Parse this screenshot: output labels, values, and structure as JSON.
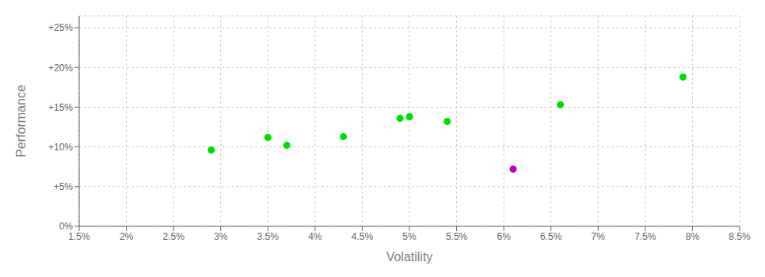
{
  "chart_data": {
    "type": "scatter",
    "xlabel": "Volatility",
    "ylabel": "Performance",
    "xlim": [
      0.015,
      0.085
    ],
    "ylim": [
      0.0,
      0.265
    ],
    "xticks": [
      {
        "value": 0.015,
        "label": "1.5%"
      },
      {
        "value": 0.02,
        "label": "2%"
      },
      {
        "value": 0.025,
        "label": "2.5%"
      },
      {
        "value": 0.03,
        "label": "3%"
      },
      {
        "value": 0.035,
        "label": "3.5%"
      },
      {
        "value": 0.04,
        "label": "4%"
      },
      {
        "value": 0.045,
        "label": "4.5%"
      },
      {
        "value": 0.05,
        "label": "5%"
      },
      {
        "value": 0.055,
        "label": "5.5%"
      },
      {
        "value": 0.06,
        "label": "6%"
      },
      {
        "value": 0.065,
        "label": "6.5%"
      },
      {
        "value": 0.07,
        "label": "7%"
      },
      {
        "value": 0.075,
        "label": "7.5%"
      },
      {
        "value": 0.08,
        "label": "8%"
      },
      {
        "value": 0.085,
        "label": "8.5%"
      }
    ],
    "yticks": [
      {
        "value": 0.0,
        "label": "0%"
      },
      {
        "value": 0.05,
        "label": "+5%"
      },
      {
        "value": 0.1,
        "label": "+10%"
      },
      {
        "value": 0.15,
        "label": "+15%"
      },
      {
        "value": 0.2,
        "label": "+20%"
      },
      {
        "value": 0.25,
        "label": "+25%"
      }
    ],
    "grid": true,
    "marker": "circle",
    "series": [
      {
        "color": "#00dd00",
        "x": [
          0.029,
          0.035,
          0.037,
          0.043,
          0.049,
          0.05,
          0.054,
          0.066,
          0.079
        ],
        "values": [
          0.096,
          0.112,
          0.102,
          0.113,
          0.136,
          0.138,
          0.132,
          0.153,
          0.188
        ]
      },
      {
        "color": "#bb00bb",
        "x": [
          0.061
        ],
        "values": [
          0.072
        ]
      }
    ]
  }
}
